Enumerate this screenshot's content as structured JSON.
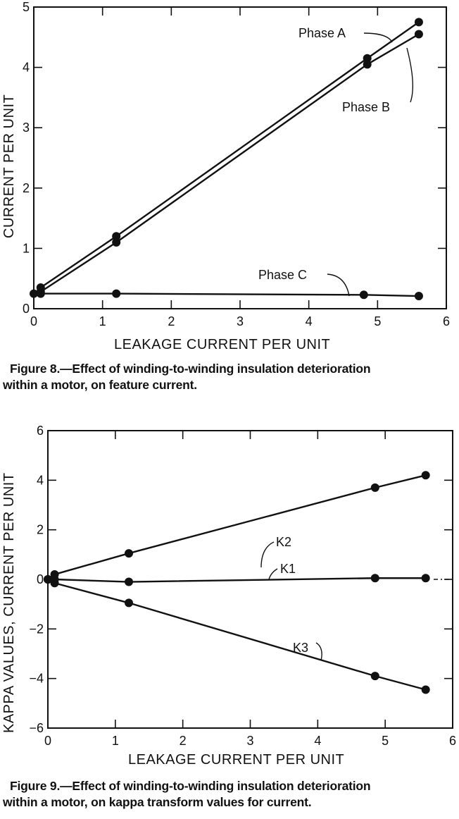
{
  "figure8": {
    "caption_line1": "Figure 8.—Effect of winding-to-winding insulation deterioration",
    "caption_line2": "within a motor, on feature current.",
    "xlabel": "LEAKAGE CURRENT PER UNIT",
    "ylabel": "CURRENT PER UNIT",
    "annotations": {
      "phase_a": "Phase A",
      "phase_b": "Phase B",
      "phase_c": "Phase C"
    }
  },
  "figure9": {
    "caption_line1": "Figure 9.—Effect of winding-to-winding insulation deterioration",
    "caption_line2": "within a motor, on kappa transform values for current.",
    "xlabel": "LEAKAGE CURRENT PER UNIT",
    "ylabel": "KAPPA VALUES, CURRENT PER UNIT",
    "annotations": {
      "k1": "K1",
      "k2": "K2",
      "k3": "K3"
    }
  },
  "chart_data": [
    {
      "type": "line",
      "title": "Figure 8.—Effect of winding-to-winding insulation deterioration within a motor, on feature current.",
      "xlabel": "LEAKAGE CURRENT PER UNIT",
      "ylabel": "CURRENT PER UNIT",
      "xlim": [
        0,
        6
      ],
      "ylim": [
        0,
        5
      ],
      "xticks": [
        0,
        1,
        2,
        3,
        4,
        5,
        6
      ],
      "yticks": [
        0,
        1,
        2,
        3,
        4,
        5
      ],
      "grid": false,
      "legend": "inline annotations",
      "series": [
        {
          "name": "Phase A",
          "x": [
            0.1,
            1.2,
            4.85,
            5.6
          ],
          "y": [
            0.35,
            1.2,
            4.15,
            4.75
          ]
        },
        {
          "name": "Phase B",
          "x": [
            0.1,
            1.2,
            4.85,
            5.6
          ],
          "y": [
            0.28,
            1.1,
            4.05,
            4.55
          ]
        },
        {
          "name": "Phase C",
          "x": [
            0.0,
            0.1,
            1.2,
            4.8,
            5.6
          ],
          "y": [
            0.25,
            0.25,
            0.25,
            0.23,
            0.21
          ]
        }
      ]
    },
    {
      "type": "line",
      "title": "Figure 9.—Effect of winding-to-winding insulation deterioration within a motor, on kappa transform values for current.",
      "xlabel": "LEAKAGE CURRENT PER UNIT",
      "ylabel": "KAPPA VALUES, CURRENT PER UNIT",
      "xlim": [
        0,
        6
      ],
      "ylim": [
        -6,
        6
      ],
      "xticks": [
        0,
        1,
        2,
        3,
        4,
        5,
        6
      ],
      "yticks": [
        -6,
        -4,
        -2,
        0,
        2,
        4,
        6
      ],
      "grid": false,
      "legend": "inline annotations",
      "series": [
        {
          "name": "K1",
          "x": [
            0.0,
            0.1,
            1.2,
            4.85,
            5.6
          ],
          "y": [
            0.0,
            0.0,
            -0.1,
            0.05,
            0.05
          ]
        },
        {
          "name": "K2",
          "x": [
            0.0,
            0.1,
            1.2,
            4.85,
            5.6
          ],
          "y": [
            0.0,
            0.2,
            1.05,
            3.7,
            4.2
          ]
        },
        {
          "name": "K3",
          "x": [
            0.0,
            0.1,
            1.2,
            4.85,
            5.6
          ],
          "y": [
            0.0,
            -0.15,
            -0.95,
            -3.9,
            -4.45
          ]
        }
      ]
    }
  ]
}
